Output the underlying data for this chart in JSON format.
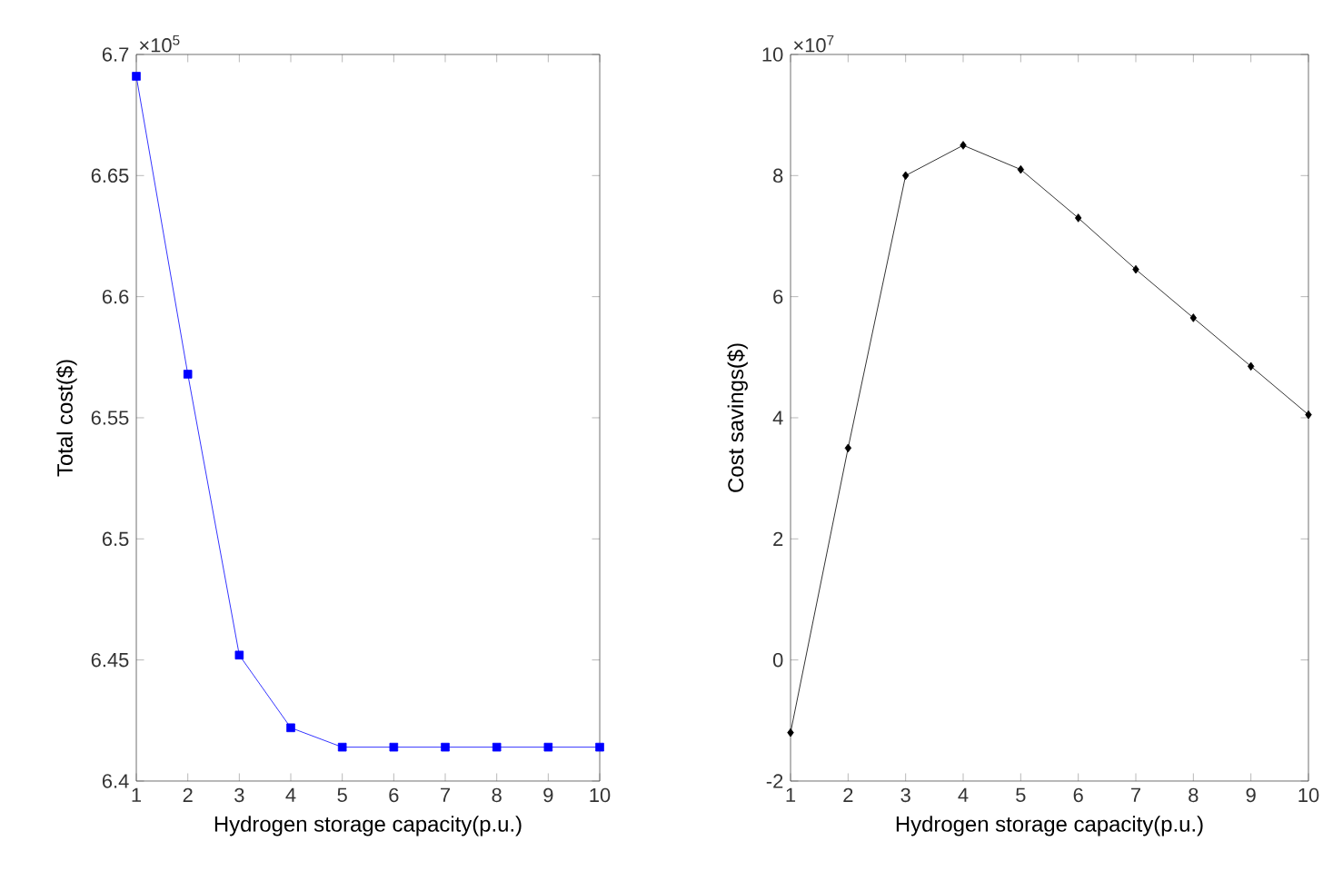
{
  "chart_data": [
    {
      "type": "line",
      "xlabel": "Hydrogen storage capacity(p.u.)",
      "ylabel": "Total cost($)",
      "annotations": [
        "×10$^{5}$"
      ],
      "x": [
        1,
        2,
        3,
        4,
        5,
        6,
        7,
        8,
        9,
        10
      ],
      "series": [
        {
          "color": "#0000ff",
          "values": [
            6.691,
            6.568,
            6.452,
            6.422,
            6.414,
            6.414,
            6.414,
            6.414,
            6.414,
            6.414
          ]
        }
      ],
      "marker": "square",
      "line_style": "solid",
      "xlim": [
        1,
        10
      ],
      "xticks": [
        1,
        2,
        3,
        4,
        5,
        6,
        7,
        8,
        9,
        10
      ],
      "ylim": [
        6.4,
        6.7
      ],
      "yticks": [
        6.4,
        6.45,
        6.5,
        6.55,
        6.6,
        6.65,
        6.7
      ]
    },
    {
      "type": "line",
      "xlabel": "Hydrogen storage capacity(p.u.)",
      "ylabel": "Cost savings($)",
      "annotations": [
        "×10$^{7}$"
      ],
      "x": [
        1,
        2,
        3,
        4,
        5,
        6,
        7,
        8,
        9,
        10
      ],
      "series": [
        {
          "color": "#000000",
          "values": [
            -1.2,
            3.5,
            8.0,
            8.5,
            8.1,
            7.3,
            6.45,
            5.65,
            4.85,
            4.05
          ]
        }
      ],
      "marker": "diamond",
      "line_style": "solid",
      "xlim": [
        1,
        10
      ],
      "xticks": [
        1,
        2,
        3,
        4,
        5,
        6,
        7,
        8,
        9,
        10
      ],
      "ylim": [
        -2,
        10
      ],
      "yticks": [
        -2,
        0,
        2,
        4,
        6,
        8,
        10
      ]
    }
  ]
}
